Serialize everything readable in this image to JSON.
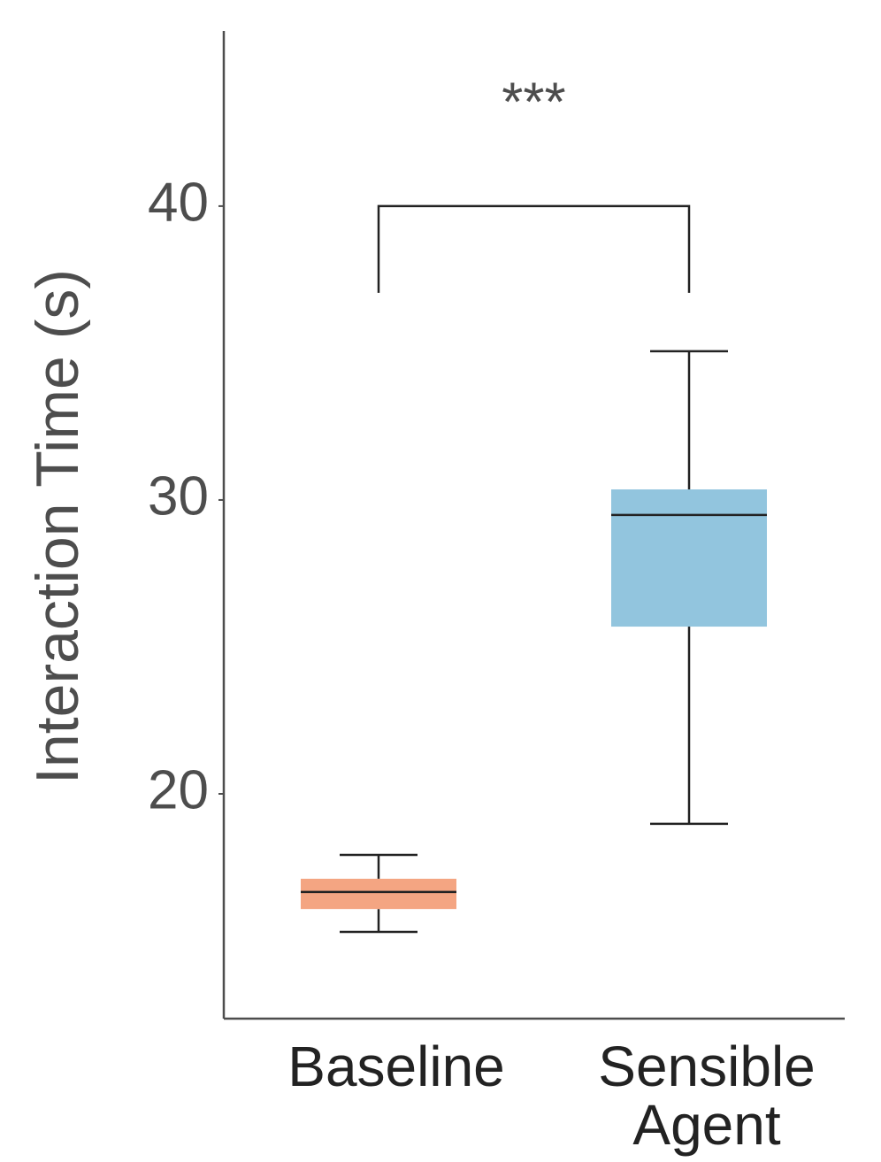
{
  "chart_data": {
    "type": "box",
    "ylabel": "Interaction Time (s)",
    "categories": [
      "Baseline",
      "Sensible Agent"
    ],
    "boxes": [
      {
        "whislo": 15.3,
        "q1": 16.08,
        "med": 16.66,
        "q3": 17.11,
        "whishi": 17.92,
        "color": "#f4a582"
      },
      {
        "whislo": 18.98,
        "q1": 25.69,
        "med": 29.49,
        "q3": 30.36,
        "whishi": 35.06,
        "color": "#92c5de"
      }
    ],
    "ylim": [
      12.35,
      45.96
    ],
    "yticks": [
      20,
      30,
      40
    ],
    "significance": {
      "label": "***",
      "y": 40,
      "y0": 37.05
    }
  }
}
